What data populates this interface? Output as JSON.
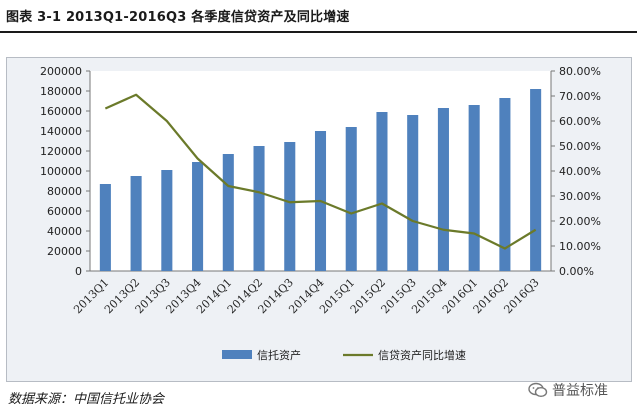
{
  "header": {
    "title": "图表 3-1 2013Q1-2016Q3 各季度信贷资产及同比增速"
  },
  "footer": {
    "source": "数据来源：中国信托业协会",
    "watermark": "普益标准"
  },
  "chart_data": {
    "type": "bar",
    "title": "",
    "xlabel": "",
    "ylabel": "",
    "categories": [
      "2013Q1",
      "2013Q2",
      "2013Q3",
      "2013Q4",
      "2014Q1",
      "2014Q2",
      "2014Q3",
      "2014Q4",
      "2015Q1",
      "2015Q2",
      "2015Q3",
      "2015Q4",
      "2016Q1",
      "2016Q2",
      "2016Q3"
    ],
    "series": [
      {
        "name": "信托资产",
        "type": "bar",
        "axis": "left",
        "color": "#4f81bd",
        "values": [
          87000,
          95000,
          101000,
          109000,
          117000,
          125000,
          129000,
          140000,
          144000,
          159000,
          156000,
          163000,
          166000,
          173000,
          182000
        ]
      },
      {
        "name": "信贷资产同比增速",
        "type": "line",
        "axis": "right",
        "color": "#6b7a2a",
        "values": [
          0.65,
          0.705,
          0.6,
          0.45,
          0.34,
          0.315,
          0.275,
          0.28,
          0.23,
          0.27,
          0.2,
          0.165,
          0.15,
          0.09,
          0.165
        ]
      }
    ],
    "y_left": {
      "min": 0,
      "max": 200000,
      "ticks": [
        "0",
        "20000",
        "40000",
        "60000",
        "80000",
        "100000",
        "120000",
        "140000",
        "160000",
        "180000",
        "200000"
      ]
    },
    "y_right": {
      "min": 0,
      "max": 0.8,
      "ticks": [
        "0.00%",
        "10.00%",
        "20.00%",
        "30.00%",
        "40.00%",
        "50.00%",
        "60.00%",
        "70.00%",
        "80.00%"
      ]
    },
    "grid": false,
    "legend_position": "bottom",
    "plot_background": "#ffffff",
    "outer_background": "#eef1f5"
  }
}
